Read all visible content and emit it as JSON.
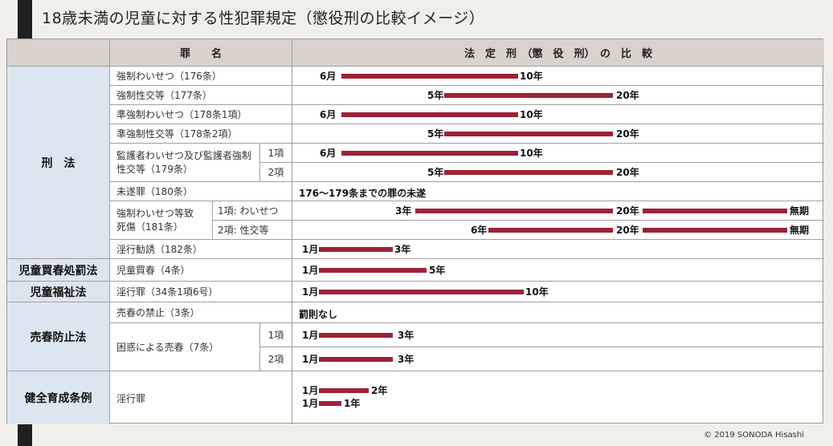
{
  "title": "18歳未満の児童に対する性犯罪規定（懲役刑の比較イメージ）",
  "header": {
    "crime_label": "罪　　名",
    "comparison_label": "法　定　刑　（懲　役　刑）　の　比　較"
  },
  "categories": {
    "keiho": "刑　法",
    "jido_baishun": "児童買春処罰法",
    "jido_fukushi": "児童福祉法",
    "baishun_boshi": "売春防止法",
    "kenzen": "健全育成条例"
  },
  "rows": {
    "r176": {
      "crime": "強制わいせつ（176条）",
      "min": "6月",
      "max": "10年"
    },
    "r177": {
      "crime": "強制性交等（177条）",
      "min": "5年",
      "max": "20年"
    },
    "r178_1": {
      "crime": "準強制わいせつ（178条1項）",
      "min": "6月",
      "max": "10年"
    },
    "r178_2": {
      "crime": "準強制性交等（178条2項）",
      "min": "5年",
      "max": "20年"
    },
    "r179": {
      "crime": "監護者わいせつ及び監護者強制性交等（179条）",
      "sub1": "1項",
      "sub2": "2項",
      "min1": "6月",
      "max1": "10年",
      "min2": "5年",
      "max2": "20年"
    },
    "r180": {
      "crime": "未遂罪（180条）",
      "note": "176～179条までの罪の未遂"
    },
    "r181": {
      "crime": "強制わいせつ等致死傷（181条）",
      "sub1": "1項: わいせつ",
      "sub2": "2項: 性交等",
      "min1": "3年",
      "mid1": "20年",
      "max1": "無期",
      "min2": "6年",
      "mid2": "20年",
      "max2": "無期"
    },
    "r182": {
      "crime": "淫行勧誘（182条）",
      "min": "1月",
      "max": "3年"
    },
    "jb4": {
      "crime": "児童買春（4条）",
      "min": "1月",
      "max": "5年"
    },
    "jf34": {
      "crime": "淫行罪（34条1項6号）",
      "min": "1月",
      "max": "10年"
    },
    "bb3": {
      "crime": "売春の禁止（3条）",
      "note": "罰則なし"
    },
    "bb7": {
      "crime": "困惑による売春（7条）",
      "sub1": "1項",
      "sub2": "2項",
      "min1": "1月",
      "max1": "3年",
      "min2": "1月",
      "max2": "3年"
    },
    "kz": {
      "crime": "淫行罪",
      "min1": "1月",
      "max1": "2年",
      "min2": "1月",
      "max2": "1年"
    }
  },
  "copyright": "© 2019 SONODA Hisashi",
  "colors": {
    "bar": "#9b2335",
    "header": "#d9d3cb",
    "category": "#dce6f0"
  }
}
